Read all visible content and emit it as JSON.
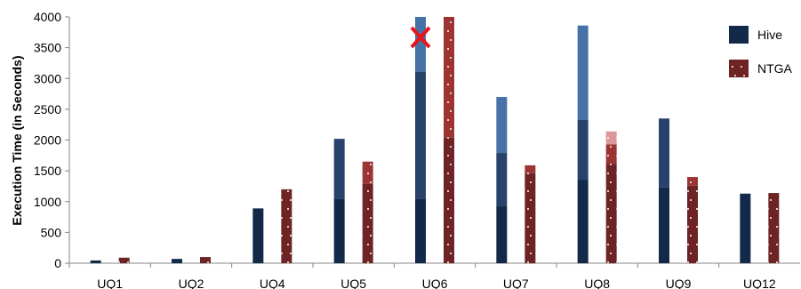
{
  "chart_data": {
    "type": "bar",
    "stacked": true,
    "categories": [
      "UQ1",
      "UQ2",
      "UQ4",
      "UQ5",
      "UQ6",
      "UQ7",
      "UQ8",
      "UQ9",
      "UQ12"
    ],
    "ylabel": "Execution Time (in Seconds)",
    "xlabel": "",
    "ylim": [
      0,
      4000
    ],
    "yticks": [
      0,
      500,
      1000,
      1500,
      2000,
      2500,
      3000,
      3500,
      4000
    ],
    "grid": false,
    "legend_position": "top-right",
    "legend": [
      {
        "name": "Hive",
        "color": "#12294a",
        "pattern": "solid"
      },
      {
        "name": "NTGA",
        "color": "#6e2424",
        "pattern": "dotted"
      }
    ],
    "series": [
      {
        "name": "Hive",
        "stack_segments_per_category": [
          [
            45
          ],
          [
            70
          ],
          [
            890
          ],
          [
            1040,
            2020
          ],
          [
            1040,
            3110,
            4000
          ],
          [
            930,
            1790,
            2700
          ],
          [
            1350,
            2330,
            3860
          ],
          [
            1230,
            2350
          ],
          [
            1130
          ]
        ],
        "totals": [
          45,
          70,
          890,
          2020,
          4000,
          2700,
          3860,
          2350,
          1130
        ],
        "segment_colors": [
          "#12294a",
          "#28436b",
          "#4672a8"
        ],
        "failed_marker": [
          false,
          false,
          false,
          false,
          true,
          false,
          false,
          false,
          false
        ]
      },
      {
        "name": "NTGA",
        "stack_segments_per_category": [
          [
            90
          ],
          [
            100
          ],
          [
            1200
          ],
          [
            1290,
            1650
          ],
          [
            2040,
            4000
          ],
          [
            1460,
            1590
          ],
          [
            1610,
            1930,
            2140
          ],
          [
            1260,
            1400
          ],
          [
            1140
          ]
        ],
        "totals": [
          90,
          100,
          1200,
          1650,
          4000,
          1590,
          2140,
          1400,
          1140
        ],
        "segment_colors": [
          "#6e2424",
          "#9c3434",
          "#dc9898"
        ]
      }
    ]
  }
}
